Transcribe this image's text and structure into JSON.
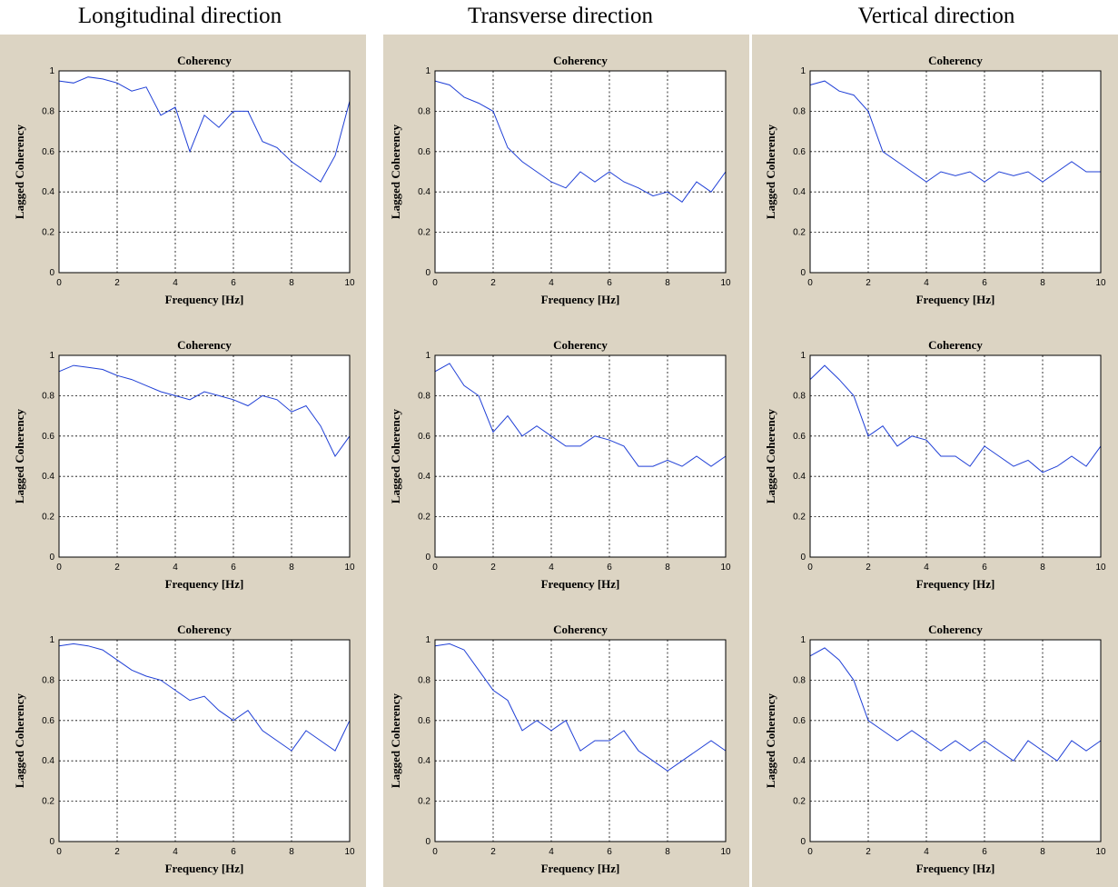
{
  "columns": [
    {
      "title": "Longitudinal direction"
    },
    {
      "title": "Transverse direction"
    },
    {
      "title": "Vertical direction"
    }
  ],
  "chart_data": [
    {
      "type": "line",
      "title": "Coherency",
      "xlabel": "Frequency [Hz]",
      "ylabel": "Lagged Coherency",
      "xlim": [
        0,
        10
      ],
      "ylim": [
        0,
        1
      ],
      "xticks": [
        "0",
        "2",
        "4",
        "6",
        "8",
        "10"
      ],
      "yticks": [
        "0",
        "0.2",
        "0.4",
        "0.6",
        "0.8",
        "1"
      ],
      "grid": true,
      "x": [
        0,
        0.5,
        1,
        1.5,
        2,
        2.5,
        3,
        3.5,
        4,
        4.5,
        5,
        5.5,
        6,
        6.5,
        7,
        7.5,
        8,
        8.5,
        9,
        9.5,
        10
      ],
      "series": [
        {
          "values": [
            0.95,
            0.94,
            0.97,
            0.96,
            0.94,
            0.9,
            0.92,
            0.78,
            0.82,
            0.6,
            0.78,
            0.72,
            0.8,
            0.8,
            0.65,
            0.62,
            0.55,
            0.5,
            0.45,
            0.58,
            0.85
          ]
        }
      ]
    },
    {
      "type": "line",
      "title": "Coherency",
      "xlabel": "Frequency [Hz]",
      "ylabel": "Lagged Coherency",
      "xlim": [
        0,
        10
      ],
      "ylim": [
        0,
        1
      ],
      "xticks": [
        "0",
        "2",
        "4",
        "6",
        "8",
        "10"
      ],
      "yticks": [
        "0",
        "0.2",
        "0.4",
        "0.6",
        "0.8",
        "1"
      ],
      "grid": true,
      "x": [
        0,
        0.5,
        1,
        1.5,
        2,
        2.5,
        3,
        3.5,
        4,
        4.5,
        5,
        5.5,
        6,
        6.5,
        7,
        7.5,
        8,
        8.5,
        9,
        9.5,
        10
      ],
      "series": [
        {
          "values": [
            0.95,
            0.93,
            0.87,
            0.84,
            0.8,
            0.62,
            0.55,
            0.5,
            0.45,
            0.42,
            0.5,
            0.45,
            0.5,
            0.45,
            0.42,
            0.38,
            0.4,
            0.35,
            0.45,
            0.4,
            0.5
          ]
        }
      ]
    },
    {
      "type": "line",
      "title": "Coherency",
      "xlabel": "Frequency [Hz]",
      "ylabel": "Lagged Coherency",
      "xlim": [
        0,
        10
      ],
      "ylim": [
        0,
        1
      ],
      "xticks": [
        "0",
        "2",
        "4",
        "6",
        "8",
        "10"
      ],
      "yticks": [
        "0",
        "0.2",
        "0.4",
        "0.6",
        "0.8",
        "1"
      ],
      "grid": true,
      "x": [
        0,
        0.5,
        1,
        1.5,
        2,
        2.5,
        3,
        3.5,
        4,
        4.5,
        5,
        5.5,
        6,
        6.5,
        7,
        7.5,
        8,
        8.5,
        9,
        9.5,
        10
      ],
      "series": [
        {
          "values": [
            0.93,
            0.95,
            0.9,
            0.88,
            0.8,
            0.6,
            0.55,
            0.5,
            0.45,
            0.5,
            0.48,
            0.5,
            0.45,
            0.5,
            0.48,
            0.5,
            0.45,
            0.5,
            0.55,
            0.5,
            0.5
          ]
        }
      ]
    },
    {
      "type": "line",
      "title": "Coherency",
      "xlabel": "Frequency [Hz]",
      "ylabel": "Lagged Coherency",
      "xlim": [
        0,
        10
      ],
      "ylim": [
        0,
        1
      ],
      "xticks": [
        "0",
        "2",
        "4",
        "6",
        "8",
        "10"
      ],
      "yticks": [
        "0",
        "0.2",
        "0.4",
        "0.6",
        "0.8",
        "1"
      ],
      "grid": true,
      "x": [
        0,
        0.5,
        1,
        1.5,
        2,
        2.5,
        3,
        3.5,
        4,
        4.5,
        5,
        5.5,
        6,
        6.5,
        7,
        7.5,
        8,
        8.5,
        9,
        9.5,
        10
      ],
      "series": [
        {
          "values": [
            0.92,
            0.95,
            0.94,
            0.93,
            0.9,
            0.88,
            0.85,
            0.82,
            0.8,
            0.78,
            0.82,
            0.8,
            0.78,
            0.75,
            0.8,
            0.78,
            0.72,
            0.75,
            0.65,
            0.5,
            0.6
          ]
        }
      ]
    },
    {
      "type": "line",
      "title": "Coherency",
      "xlabel": "Frequency [Hz]",
      "ylabel": "Lagged Coherency",
      "xlim": [
        0,
        10
      ],
      "ylim": [
        0,
        1
      ],
      "xticks": [
        "0",
        "2",
        "4",
        "6",
        "8",
        "10"
      ],
      "yticks": [
        "0",
        "0.2",
        "0.4",
        "0.6",
        "0.8",
        "1"
      ],
      "grid": true,
      "x": [
        0,
        0.5,
        1,
        1.5,
        2,
        2.5,
        3,
        3.5,
        4,
        4.5,
        5,
        5.5,
        6,
        6.5,
        7,
        7.5,
        8,
        8.5,
        9,
        9.5,
        10
      ],
      "series": [
        {
          "values": [
            0.92,
            0.96,
            0.85,
            0.8,
            0.62,
            0.7,
            0.6,
            0.65,
            0.6,
            0.55,
            0.55,
            0.6,
            0.58,
            0.55,
            0.45,
            0.45,
            0.48,
            0.45,
            0.5,
            0.45,
            0.5
          ]
        }
      ]
    },
    {
      "type": "line",
      "title": "Coherency",
      "xlabel": "Frequency [Hz]",
      "ylabel": "Lagged Coherency",
      "xlim": [
        0,
        10
      ],
      "ylim": [
        0,
        1
      ],
      "xticks": [
        "0",
        "2",
        "4",
        "6",
        "8",
        "10"
      ],
      "yticks": [
        "0",
        "0.2",
        "0.4",
        "0.6",
        "0.8",
        "1"
      ],
      "grid": true,
      "x": [
        0,
        0.5,
        1,
        1.5,
        2,
        2.5,
        3,
        3.5,
        4,
        4.5,
        5,
        5.5,
        6,
        6.5,
        7,
        7.5,
        8,
        8.5,
        9,
        9.5,
        10
      ],
      "series": [
        {
          "values": [
            0.88,
            0.95,
            0.88,
            0.8,
            0.6,
            0.65,
            0.55,
            0.6,
            0.58,
            0.5,
            0.5,
            0.45,
            0.55,
            0.5,
            0.45,
            0.48,
            0.42,
            0.45,
            0.5,
            0.45,
            0.55
          ]
        }
      ]
    },
    {
      "type": "line",
      "title": "Coherency",
      "xlabel": "Frequency [Hz]",
      "ylabel": "Lagged Coherency",
      "xlim": [
        0,
        10
      ],
      "ylim": [
        0,
        1
      ],
      "xticks": [
        "0",
        "2",
        "4",
        "6",
        "8",
        "10"
      ],
      "yticks": [
        "0",
        "0.2",
        "0.4",
        "0.6",
        "0.8",
        "1"
      ],
      "grid": true,
      "x": [
        0,
        0.5,
        1,
        1.5,
        2,
        2.5,
        3,
        3.5,
        4,
        4.5,
        5,
        5.5,
        6,
        6.5,
        7,
        7.5,
        8,
        8.5,
        9,
        9.5,
        10
      ],
      "series": [
        {
          "values": [
            0.97,
            0.98,
            0.97,
            0.95,
            0.9,
            0.85,
            0.82,
            0.8,
            0.75,
            0.7,
            0.72,
            0.65,
            0.6,
            0.65,
            0.55,
            0.5,
            0.45,
            0.55,
            0.5,
            0.45,
            0.6
          ]
        }
      ]
    },
    {
      "type": "line",
      "title": "Coherency",
      "xlabel": "Frequency [Hz]",
      "ylabel": "Lagged Coherency",
      "xlim": [
        0,
        10
      ],
      "ylim": [
        0,
        1
      ],
      "xticks": [
        "0",
        "2",
        "4",
        "6",
        "8",
        "10"
      ],
      "yticks": [
        "0",
        "0.2",
        "0.4",
        "0.6",
        "0.8",
        "1"
      ],
      "grid": true,
      "x": [
        0,
        0.5,
        1,
        1.5,
        2,
        2.5,
        3,
        3.5,
        4,
        4.5,
        5,
        5.5,
        6,
        6.5,
        7,
        7.5,
        8,
        8.5,
        9,
        9.5,
        10
      ],
      "series": [
        {
          "values": [
            0.97,
            0.98,
            0.95,
            0.85,
            0.75,
            0.7,
            0.55,
            0.6,
            0.55,
            0.6,
            0.45,
            0.5,
            0.5,
            0.55,
            0.45,
            0.4,
            0.35,
            0.4,
            0.45,
            0.5,
            0.45
          ]
        }
      ]
    },
    {
      "type": "line",
      "title": "Coherency",
      "xlabel": "Frequency [Hz]",
      "ylabel": "Lagged Coherency",
      "xlim": [
        0,
        10
      ],
      "ylim": [
        0,
        1
      ],
      "xticks": [
        "0",
        "2",
        "4",
        "6",
        "8",
        "10"
      ],
      "yticks": [
        "0",
        "0.2",
        "0.4",
        "0.6",
        "0.8",
        "1"
      ],
      "grid": true,
      "x": [
        0,
        0.5,
        1,
        1.5,
        2,
        2.5,
        3,
        3.5,
        4,
        4.5,
        5,
        5.5,
        6,
        6.5,
        7,
        7.5,
        8,
        8.5,
        9,
        9.5,
        10
      ],
      "series": [
        {
          "values": [
            0.92,
            0.96,
            0.9,
            0.8,
            0.6,
            0.55,
            0.5,
            0.55,
            0.5,
            0.45,
            0.5,
            0.45,
            0.5,
            0.45,
            0.4,
            0.5,
            0.45,
            0.4,
            0.5,
            0.45,
            0.5
          ]
        }
      ]
    }
  ]
}
